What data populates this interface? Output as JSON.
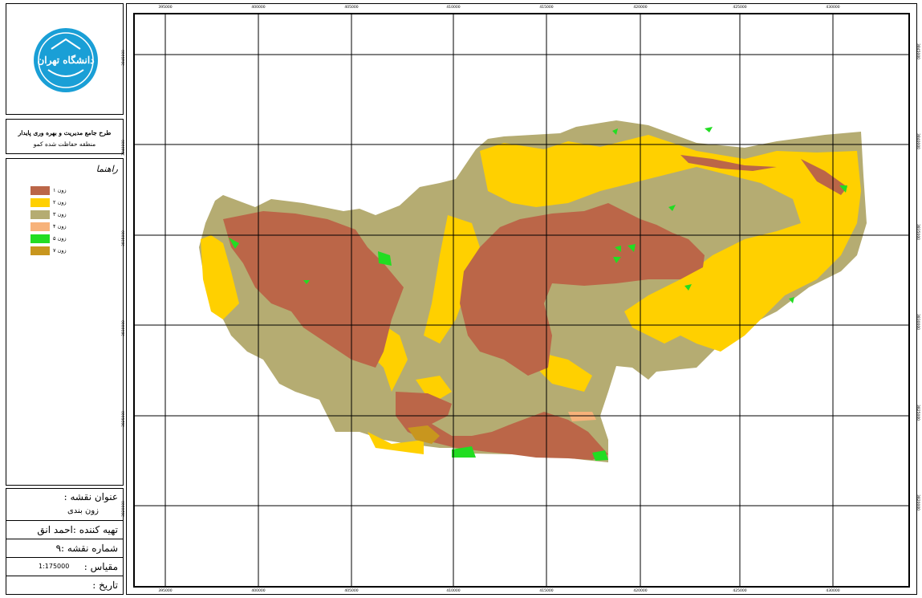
{
  "sidebar": {
    "logo": {
      "icon": "university-seal-icon",
      "text": "دانشگاه تهران",
      "color": "#1a9fd6"
    },
    "org_title_line1": "طرح جامع مدیریت و بهره وری پایدار",
    "org_title_line2": "منطقه حفاظت شده کمو",
    "legend": {
      "title": "راهنما",
      "items": [
        {
          "label": "زون ۱",
          "color": "#bb6648"
        },
        {
          "label": "زون ۲",
          "color": "#ffd000"
        },
        {
          "label": "زون ۳",
          "color": "#b5ac72"
        },
        {
          "label": "زون ۴",
          "color": "#f7b27a"
        },
        {
          "label": "زون ۵",
          "color": "#22dd22"
        },
        {
          "label": "زون ۷",
          "color": "#c8961e"
        }
      ]
    },
    "info": {
      "map_title_label": "عنوان نقشه :",
      "map_title_value": "زون بندی",
      "prepared_by": "تهیه کننده :احمد انق",
      "map_number": "شماره نقشه :۹",
      "scale_label": "مقیاس :",
      "scale_value": "1:175000",
      "date_label": "تاریخ :"
    }
  },
  "map": {
    "grid_top_labels": [
      "395000",
      "400000",
      "405000",
      "410000",
      "415000",
      "420000",
      "425000",
      "430000"
    ],
    "grid_bottom_labels": [
      "395000",
      "400000",
      "405000",
      "410000",
      "415000",
      "420000",
      "425000",
      "430000"
    ],
    "grid_left_labels": [
      "3845000",
      "3840000",
      "3835000",
      "3830000",
      "3825000",
      "3820000"
    ],
    "grid_right_labels": [
      "3845000",
      "3840000",
      "3835000",
      "3830000",
      "3825000",
      "3820000"
    ]
  }
}
